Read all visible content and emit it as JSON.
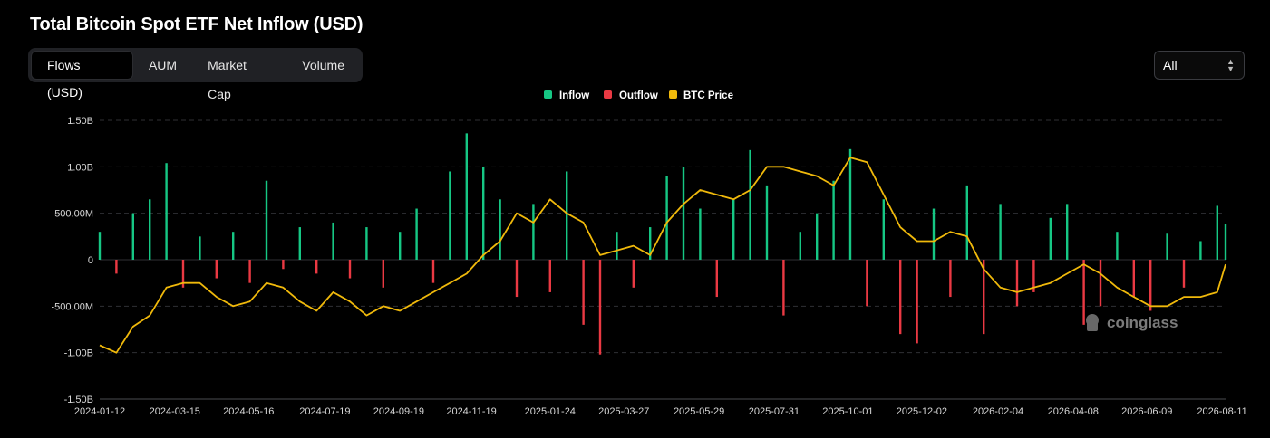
{
  "page": {
    "title": "Total Bitcoin Spot ETF Net Inflow (USD)"
  },
  "tabs": [
    {
      "label": "Flows (USD)",
      "active": true
    },
    {
      "label": "AUM",
      "active": false
    },
    {
      "label": "Market Cap",
      "active": false
    },
    {
      "label": "Volume",
      "active": false
    }
  ],
  "range_select": {
    "value": "All",
    "icon": "chevron-updown-icon"
  },
  "watermark": {
    "text": "coinglass",
    "icon": "coinglass-logo-icon"
  },
  "colors": {
    "inflow": "#16c784",
    "outflow": "#ea3943",
    "price": "#f0b90b",
    "grid": "#2f3035"
  },
  "chart_data": {
    "type": "bar",
    "title": "Total Bitcoin Spot ETF Net Inflow (USD)",
    "legend": [
      "Inflow",
      "Outflow",
      "BTC Price"
    ],
    "legend_position": "top-center",
    "grid": true,
    "ylim": [
      -1500000000,
      1500000000
    ],
    "y_ticks": [
      {
        "value": 1500000000,
        "label": "1.50B"
      },
      {
        "value": 1000000000,
        "label": "1.00B"
      },
      {
        "value": 500000000,
        "label": "500.00M"
      },
      {
        "value": 0,
        "label": "0"
      },
      {
        "value": -500000000,
        "label": "-500.00M"
      },
      {
        "value": -1000000000,
        "label": "-1.00B"
      },
      {
        "value": -1500000000,
        "label": "-1.50B"
      }
    ],
    "x_tick_labels": [
      "2024-01-12",
      "2024-03-15",
      "2024-05-16",
      "2024-07-19",
      "2024-09-19",
      "2024-11-19",
      "2025-01-24",
      "2025-03-27",
      "2025-05-29",
      "2025-07-31",
      "2025-10-01",
      "2025-12-02",
      "2026-02-04",
      "2026-04-08",
      "2026-06-09",
      "2026-08-11"
    ],
    "series": [
      {
        "name": "Inflow/Outflow",
        "x": [
          "2024-01-12",
          "2024-01-26",
          "2024-02-09",
          "2024-02-23",
          "2024-03-08",
          "2024-03-22",
          "2024-04-05",
          "2024-04-19",
          "2024-05-03",
          "2024-05-17",
          "2024-05-31",
          "2024-06-14",
          "2024-06-28",
          "2024-07-12",
          "2024-07-26",
          "2024-08-09",
          "2024-08-23",
          "2024-09-06",
          "2024-09-20",
          "2024-10-04",
          "2024-10-18",
          "2024-11-01",
          "2024-11-15",
          "2024-11-29",
          "2024-12-13",
          "2024-12-27",
          "2025-01-10",
          "2025-01-24",
          "2025-02-07",
          "2025-02-21",
          "2025-03-07",
          "2025-03-21",
          "2025-04-04",
          "2025-04-18",
          "2025-05-02",
          "2025-05-16",
          "2025-05-30",
          "2025-06-13",
          "2025-06-27",
          "2025-07-11",
          "2025-07-25",
          "2025-08-08",
          "2025-08-22",
          "2025-09-05",
          "2025-09-19",
          "2025-10-03",
          "2025-10-17",
          "2025-10-31",
          "2025-11-14",
          "2025-11-28",
          "2025-12-12",
          "2025-12-26",
          "2026-01-09",
          "2026-01-23",
          "2026-02-06",
          "2026-02-20",
          "2026-03-06",
          "2026-03-20",
          "2026-04-03",
          "2026-04-17",
          "2026-05-01",
          "2026-05-15",
          "2026-05-29",
          "2026-06-12",
          "2026-06-26",
          "2026-07-10",
          "2026-07-24",
          "2026-08-07",
          "2026-08-14"
        ],
        "values": [
          300000000,
          -150000000,
          500000000,
          650000000,
          1040000000,
          -300000000,
          250000000,
          -200000000,
          300000000,
          -250000000,
          850000000,
          -100000000,
          350000000,
          -150000000,
          400000000,
          -200000000,
          350000000,
          -300000000,
          300000000,
          550000000,
          -250000000,
          950000000,
          1360000000,
          1000000000,
          650000000,
          -400000000,
          600000000,
          -350000000,
          950000000,
          -700000000,
          -1020000000,
          300000000,
          -300000000,
          350000000,
          900000000,
          1000000000,
          550000000,
          -400000000,
          650000000,
          1180000000,
          800000000,
          -600000000,
          300000000,
          500000000,
          850000000,
          1190000000,
          -500000000,
          650000000,
          -800000000,
          -900000000,
          550000000,
          -400000000,
          800000000,
          -800000000,
          600000000,
          -500000000,
          -350000000,
          450000000,
          600000000,
          -700000000,
          -500000000,
          300000000,
          -400000000,
          -550000000,
          280000000,
          -300000000,
          200000000,
          580000000,
          380000000
        ]
      },
      {
        "name": "BTC Price",
        "x": [
          "2024-01-12",
          "2024-01-26",
          "2024-02-09",
          "2024-02-23",
          "2024-03-08",
          "2024-03-22",
          "2024-04-05",
          "2024-04-19",
          "2024-05-03",
          "2024-05-17",
          "2024-05-31",
          "2024-06-14",
          "2024-06-28",
          "2024-07-12",
          "2024-07-26",
          "2024-08-09",
          "2024-08-23",
          "2024-09-06",
          "2024-09-20",
          "2024-10-04",
          "2024-10-18",
          "2024-11-01",
          "2024-11-15",
          "2024-11-29",
          "2024-12-13",
          "2024-12-27",
          "2025-01-10",
          "2025-01-24",
          "2025-02-07",
          "2025-02-21",
          "2025-03-07",
          "2025-03-21",
          "2025-04-04",
          "2025-04-18",
          "2025-05-02",
          "2025-05-16",
          "2025-05-30",
          "2025-06-13",
          "2025-06-27",
          "2025-07-11",
          "2025-07-25",
          "2025-08-08",
          "2025-08-22",
          "2025-09-05",
          "2025-09-19",
          "2025-10-03",
          "2025-10-17",
          "2025-10-31",
          "2025-11-14",
          "2025-11-28",
          "2025-12-12",
          "2025-12-26",
          "2026-01-09",
          "2026-01-23",
          "2026-02-06",
          "2026-02-20",
          "2026-03-06",
          "2026-03-20",
          "2026-04-03",
          "2026-04-17",
          "2026-05-01",
          "2026-05-15",
          "2026-05-29",
          "2026-06-12",
          "2026-06-26",
          "2026-07-10",
          "2026-07-24",
          "2026-08-07",
          "2026-08-14"
        ],
        "values": [
          -920000000,
          -1000000000,
          -720000000,
          -600000000,
          -300000000,
          -250000000,
          -250000000,
          -400000000,
          -500000000,
          -450000000,
          -250000000,
          -300000000,
          -450000000,
          -550000000,
          -350000000,
          -450000000,
          -600000000,
          -500000000,
          -550000000,
          -450000000,
          -350000000,
          -250000000,
          -150000000,
          50000000,
          200000000,
          500000000,
          400000000,
          650000000,
          500000000,
          400000000,
          50000000,
          100000000,
          150000000,
          50000000,
          400000000,
          600000000,
          750000000,
          700000000,
          650000000,
          750000000,
          1000000000,
          1000000000,
          950000000,
          900000000,
          800000000,
          1100000000,
          1050000000,
          700000000,
          350000000,
          200000000,
          200000000,
          300000000,
          250000000,
          -100000000,
          -300000000,
          -350000000,
          -300000000,
          -250000000,
          -150000000,
          -50000000,
          -150000000,
          -300000000,
          -400000000,
          -500000000,
          -500000000,
          -400000000,
          -400000000,
          -350000000,
          -50000000
        ]
      }
    ]
  }
}
